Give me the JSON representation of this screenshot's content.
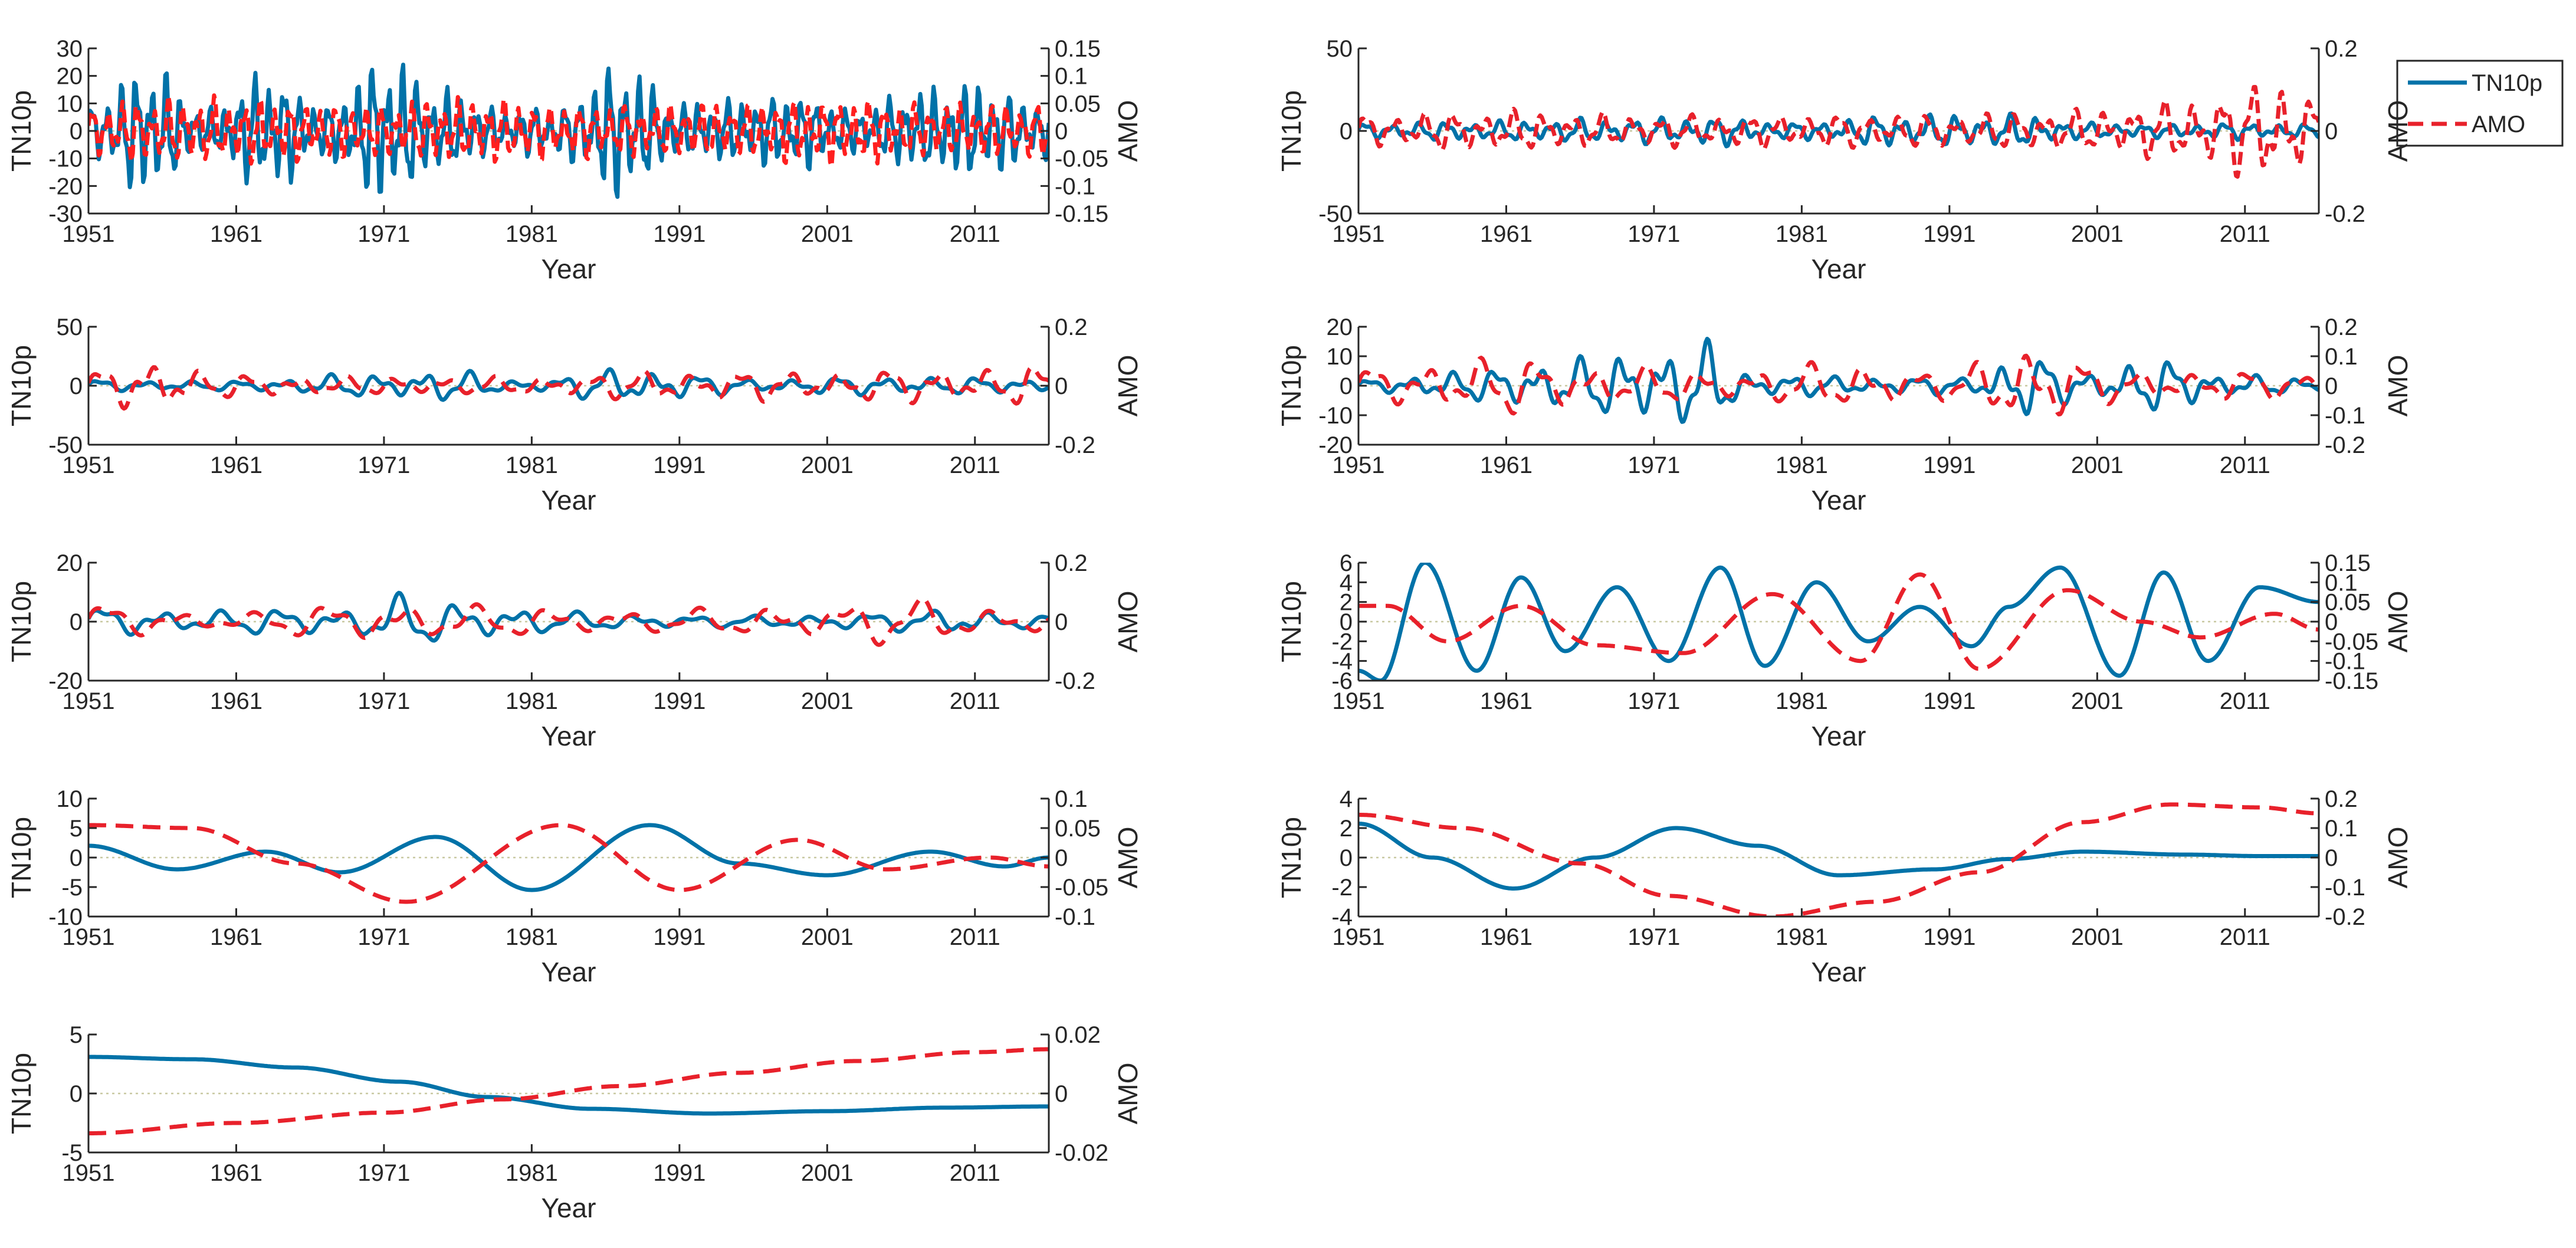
{
  "colors": {
    "tn10p": "#0072a8",
    "amo": "#e8212b",
    "amo_panel1": "#ff1f1f",
    "axis": "#262626",
    "zero": "#c8c8a0"
  },
  "legend": {
    "entries": [
      {
        "label": "TN10p",
        "style": "solid",
        "color": "#0072a8"
      },
      {
        "label": "AMO",
        "style": "dashed",
        "color": "#e8212b"
      }
    ],
    "position": "top-right"
  },
  "chart_data": [
    {
      "type": "line",
      "panel": 1,
      "xlabel": "Year",
      "ylabel": "TN10p",
      "y2label": "AMO",
      "xlim": [
        1951,
        2016
      ],
      "xticks": [
        "1951",
        "1961",
        "1971",
        "1981",
        "1991",
        "2001",
        "2011"
      ],
      "ylim": [
        -30,
        30
      ],
      "yticks": [
        "30",
        "20",
        "10",
        "0",
        "-10",
        "-20",
        "-30"
      ],
      "y2lim": [
        -0.15,
        0.15
      ],
      "y2ticks": [
        "0.15",
        "0.1",
        "0.05",
        "0",
        "-0.05",
        "-0.1",
        "-0.15"
      ],
      "series": [
        {
          "name": "TN10p",
          "axis": "left",
          "style": "solid",
          "freq": 1.0,
          "irregular": 1,
          "x": [
            1951,
            1955,
            1959,
            1963,
            1967,
            1971,
            1975,
            1979,
            1983,
            1987,
            1991,
            1995,
            1999,
            2003,
            2007,
            2011,
            2016
          ],
          "y": [
            10,
            25,
            8,
            22,
            10,
            28,
            15,
            8,
            10,
            26,
            10,
            12,
            14,
            8,
            15,
            18,
            10
          ]
        },
        {
          "name": "AMO",
          "axis": "right",
          "style": "dashed",
          "freq": 0.97,
          "irregular": 1,
          "x": [
            1951,
            1955,
            1959,
            1963,
            1967,
            1971,
            1975,
            1979,
            1983,
            1987,
            1991,
            1995,
            1999,
            2003,
            2007,
            2011,
            2016
          ],
          "y": [
            0.05,
            0.06,
            0.06,
            0.06,
            0.05,
            0.05,
            0.06,
            0.06,
            0.05,
            0.05,
            0.05,
            0.05,
            0.06,
            0.06,
            0.05,
            0.05,
            0.05
          ]
        }
      ]
    },
    {
      "type": "line",
      "panel": 2,
      "xlabel": "Year",
      "ylabel": "TN10p",
      "y2label": "AMO",
      "xlim": [
        1951,
        2016
      ],
      "xticks": [
        "1951",
        "1961",
        "1971",
        "1981",
        "1991",
        "2001",
        "2011"
      ],
      "ylim": [
        -50,
        50
      ],
      "yticks": [
        "50",
        "0",
        "-50"
      ],
      "y2lim": [
        -0.2,
        0.2
      ],
      "y2ticks": [
        "0.2",
        "0",
        "-0.2"
      ],
      "series": [
        {
          "name": "TN10p",
          "axis": "left",
          "style": "solid",
          "freq": 0.55,
          "irregular": 1,
          "x": [
            1951,
            1960,
            1970,
            1975,
            1980,
            1988,
            1996,
            2000,
            2005,
            2010,
            2016
          ],
          "y": [
            5,
            6,
            8,
            9,
            5,
            10,
            10,
            5,
            4,
            5,
            4
          ]
        },
        {
          "name": "AMO",
          "axis": "right",
          "style": "dashed",
          "freq": 0.5,
          "irregular": 1,
          "x": [
            1951,
            1960,
            1970,
            1980,
            1990,
            2000,
            2005,
            2010,
            2013,
            2016
          ],
          "y": [
            0.04,
            0.05,
            0.04,
            0.04,
            0.04,
            0.05,
            0.07,
            0.1,
            0.14,
            0.08
          ]
        }
      ]
    },
    {
      "type": "line",
      "panel": 3,
      "xlabel": "Year",
      "ylabel": "TN10p",
      "y2label": "AMO",
      "xlim": [
        1951,
        2016
      ],
      "xticks": [
        "1951",
        "1961",
        "1971",
        "1981",
        "1991",
        "2001",
        "2011"
      ],
      "ylim": [
        -50,
        50
      ],
      "yticks": [
        "50",
        "0",
        "-50"
      ],
      "y2lim": [
        -0.2,
        0.2
      ],
      "y2ticks": [
        "0.2",
        "0",
        "-0.2"
      ],
      "series": [
        {
          "name": "TN10p",
          "axis": "left",
          "style": "solid",
          "freq": 0.32,
          "irregular": 0.6,
          "x": [
            1951,
            1960,
            1970,
            1975,
            1980,
            1988,
            1996,
            2005,
            2016
          ],
          "y": [
            5,
            4,
            10,
            14,
            5,
            15,
            6,
            8,
            6
          ]
        },
        {
          "name": "AMO",
          "axis": "right",
          "style": "dashed",
          "freq": 0.3,
          "irregular": 0.6,
          "x": [
            1951,
            1955,
            1960,
            1970,
            1980,
            1990,
            2000,
            2010,
            2016
          ],
          "y": [
            0.05,
            0.1,
            0.04,
            0.03,
            0.03,
            0.05,
            0.05,
            0.06,
            0.07
          ]
        }
      ]
    },
    {
      "type": "line",
      "panel": 4,
      "xlabel": "Year",
      "ylabel": "TN10p",
      "y2label": "AMO",
      "xlim": [
        1951,
        2016
      ],
      "xticks": [
        "1951",
        "1961",
        "1971",
        "1981",
        "1991",
        "2001",
        "2011"
      ],
      "ylim": [
        -20,
        20
      ],
      "yticks": [
        "20",
        "10",
        "0",
        "-10",
        "-20"
      ],
      "y2lim": [
        -0.2,
        0.2
      ],
      "y2ticks": [
        "0.2",
        "0.1",
        "0",
        "-0.1",
        "-0.2"
      ],
      "series": [
        {
          "name": "TN10p",
          "axis": "left",
          "style": "solid",
          "freq": 0.35,
          "irregular": 0.3,
          "x": [
            1951,
            1958,
            1965,
            1971,
            1974,
            1978,
            1985,
            1992,
            1996,
            2000,
            2005,
            2010,
            2016
          ],
          "y": [
            2,
            5,
            9,
            13,
            15,
            4,
            3,
            3,
            11,
            5,
            9,
            4,
            2
          ]
        },
        {
          "name": "AMO",
          "axis": "right",
          "style": "dashed",
          "freq": 0.27,
          "irregular": 0.3,
          "x": [
            1951,
            1960,
            1968,
            1975,
            1985,
            1991,
            1996,
            2003,
            2010,
            2016
          ],
          "y": [
            0.06,
            0.1,
            0.07,
            0.05,
            0.08,
            0.05,
            0.15,
            0.05,
            0.05,
            0.04
          ]
        }
      ]
    },
    {
      "type": "line",
      "panel": 5,
      "xlabel": "Year",
      "ylabel": "TN10p",
      "y2label": "AMO",
      "xlim": [
        1951,
        2016
      ],
      "xticks": [
        "1951",
        "1961",
        "1971",
        "1981",
        "1991",
        "2001",
        "2011"
      ],
      "ylim": [
        -20,
        20
      ],
      "yticks": [
        "20",
        "0",
        "-20"
      ],
      "y2lim": [
        -0.2,
        0.2
      ],
      "y2ticks": [
        "0.2",
        "0",
        "-0.2"
      ],
      "series": [
        {
          "name": "TN10p",
          "axis": "left",
          "style": "solid",
          "freq": 0.25,
          "irregular": 0.2,
          "x": [
            1951,
            1960,
            1968,
            1972,
            1976,
            1985,
            1995,
            2005,
            2010,
            2016
          ],
          "y": [
            5,
            4,
            5,
            9,
            7,
            3,
            2,
            3,
            5,
            2
          ]
        },
        {
          "name": "AMO",
          "axis": "right",
          "style": "dashed",
          "freq": 0.2,
          "irregular": 0.2,
          "x": [
            1951,
            1960,
            1971,
            1980,
            1990,
            2000,
            2006,
            2016
          ],
          "y": [
            0.06,
            0.03,
            0.07,
            0.05,
            0.04,
            0.06,
            0.08,
            0.04
          ]
        }
      ]
    },
    {
      "type": "line",
      "panel": 6,
      "xlabel": "Year",
      "ylabel": "TN10p",
      "y2label": "AMO",
      "xlim": [
        1951,
        2016
      ],
      "xticks": [
        "1951",
        "1961",
        "1971",
        "1981",
        "1991",
        "2001",
        "2011"
      ],
      "ylim": [
        -6,
        6
      ],
      "yticks": [
        "6",
        "4",
        "2",
        "0",
        "-2",
        "-4",
        "-6"
      ],
      "y2lim": [
        -0.15,
        0.15
      ],
      "y2ticks": [
        "0.15",
        "0.1",
        "0.05",
        "0",
        "-0.05",
        "-0.1",
        "-0.15"
      ],
      "series": [
        {
          "name": "TN10p",
          "axis": "left",
          "style": "solid",
          "x": [
            1951,
            1952.5,
            1955.5,
            1959,
            1962,
            1965,
            1968.5,
            1972,
            1975.5,
            1978.5,
            1982,
            1985.5,
            1989,
            1992.5,
            1995,
            1998.5,
            2002.5,
            2005.5,
            2008.5,
            2012,
            2016
          ],
          "y": [
            -5,
            -6,
            6,
            -5,
            4.5,
            -3,
            3.5,
            -4,
            5.5,
            -4.5,
            4,
            -2,
            1.5,
            -2.5,
            1.5,
            5.5,
            -5.5,
            5,
            -4,
            3.5,
            2
          ]
        },
        {
          "name": "AMO",
          "axis": "right",
          "style": "dashed",
          "x": [
            1951,
            1953,
            1957,
            1962,
            1967,
            1973,
            1979,
            1985,
            1989,
            1993,
            1999,
            2004,
            2008,
            2013,
            2016
          ],
          "y": [
            0.04,
            0.04,
            -0.05,
            0.04,
            -0.06,
            -0.08,
            0.07,
            -0.1,
            0.12,
            -0.12,
            0.08,
            0,
            -0.04,
            0.02,
            -0.02
          ]
        }
      ]
    },
    {
      "type": "line",
      "panel": 7,
      "xlabel": "Year",
      "ylabel": "TN10p",
      "y2label": "AMO",
      "xlim": [
        1951,
        2016
      ],
      "xticks": [
        "1951",
        "1961",
        "1971",
        "1981",
        "1991",
        "2001",
        "2011"
      ],
      "ylim": [
        -10,
        10
      ],
      "yticks": [
        "10",
        "5",
        "0",
        "-5",
        "-10"
      ],
      "y2lim": [
        -0.1,
        0.1
      ],
      "y2ticks": [
        "0.1",
        "0.05",
        "0",
        "-0.05",
        "-0.1"
      ],
      "series": [
        {
          "name": "TN10p",
          "axis": "left",
          "style": "solid",
          "x": [
            1951,
            1957,
            1963,
            1968,
            1974.5,
            1981,
            1989,
            1995,
            2001,
            2008,
            2013,
            2016
          ],
          "y": [
            2,
            -2,
            1,
            -2.5,
            3.5,
            -5.5,
            5.5,
            -1,
            -3,
            1,
            -1.5,
            0
          ]
        },
        {
          "name": "AMO",
          "axis": "right",
          "style": "dashed",
          "x": [
            1951,
            1958,
            1965,
            1972.5,
            1983,
            1991,
            1999,
            2005,
            2012,
            2016
          ],
          "y": [
            0.055,
            0.05,
            -0.01,
            -0.075,
            0.055,
            -0.055,
            0.03,
            -0.02,
            0,
            -0.015
          ]
        }
      ]
    },
    {
      "type": "line",
      "panel": 8,
      "xlabel": "Year",
      "ylabel": "TN10p",
      "y2label": "AMO",
      "xlim": [
        1951,
        2016
      ],
      "xticks": [
        "1951",
        "1961",
        "1971",
        "1981",
        "1991",
        "2001",
        "2011"
      ],
      "ylim": [
        -4,
        4
      ],
      "yticks": [
        "4",
        "2",
        "0",
        "-2",
        "-4"
      ],
      "y2lim": [
        -0.2,
        0.2
      ],
      "y2ticks": [
        "0.2",
        "0.1",
        "0",
        "-0.1",
        "-0.2"
      ],
      "series": [
        {
          "name": "TN10p",
          "axis": "left",
          "style": "solid",
          "x": [
            1951,
            1956,
            1961.5,
            1967,
            1972.5,
            1978,
            1983.5,
            1990,
            1995,
            2000,
            2007,
            2012,
            2016
          ],
          "y": [
            2.3,
            0,
            -2.1,
            0,
            2,
            0.8,
            -1.2,
            -0.8,
            -0.1,
            0.4,
            0.2,
            0.1,
            0.1
          ]
        },
        {
          "name": "AMO",
          "axis": "right",
          "style": "dashed",
          "x": [
            1951,
            1958,
            1966,
            1972,
            1979,
            1986,
            1993,
            2000,
            2006,
            2012,
            2016
          ],
          "y": [
            0.145,
            0.1,
            -0.02,
            -0.13,
            -0.2,
            -0.15,
            -0.05,
            0.12,
            0.18,
            0.17,
            0.15
          ]
        }
      ]
    },
    {
      "type": "line",
      "panel": 9,
      "xlabel": "Year",
      "ylabel": "TN10p",
      "y2label": "AMO",
      "xlim": [
        1951,
        2016
      ],
      "xticks": [
        "1951",
        "1961",
        "1971",
        "1981",
        "1991",
        "2001",
        "2011"
      ],
      "ylim": [
        -5,
        5
      ],
      "yticks": [
        "5",
        "0",
        "-5"
      ],
      "y2lim": [
        -0.02,
        0.02
      ],
      "y2ticks": [
        "0.02",
        "0",
        "-0.02"
      ],
      "series": [
        {
          "name": "TN10p",
          "axis": "left",
          "style": "solid",
          "x": [
            1951,
            1958,
            1965,
            1972,
            1978,
            1985,
            1993,
            2001,
            2009,
            2016
          ],
          "y": [
            3.1,
            2.9,
            2.2,
            1,
            -0.3,
            -1.3,
            -1.7,
            -1.5,
            -1.2,
            -1.1
          ]
        },
        {
          "name": "AMO",
          "axis": "right",
          "style": "dashed",
          "x": [
            1951,
            1961,
            1971,
            1979,
            1987,
            1995,
            2003,
            2011,
            2016
          ],
          "y": [
            -0.0135,
            -0.01,
            -0.0065,
            -0.002,
            0.0025,
            0.007,
            0.011,
            0.014,
            0.015
          ]
        }
      ]
    }
  ]
}
